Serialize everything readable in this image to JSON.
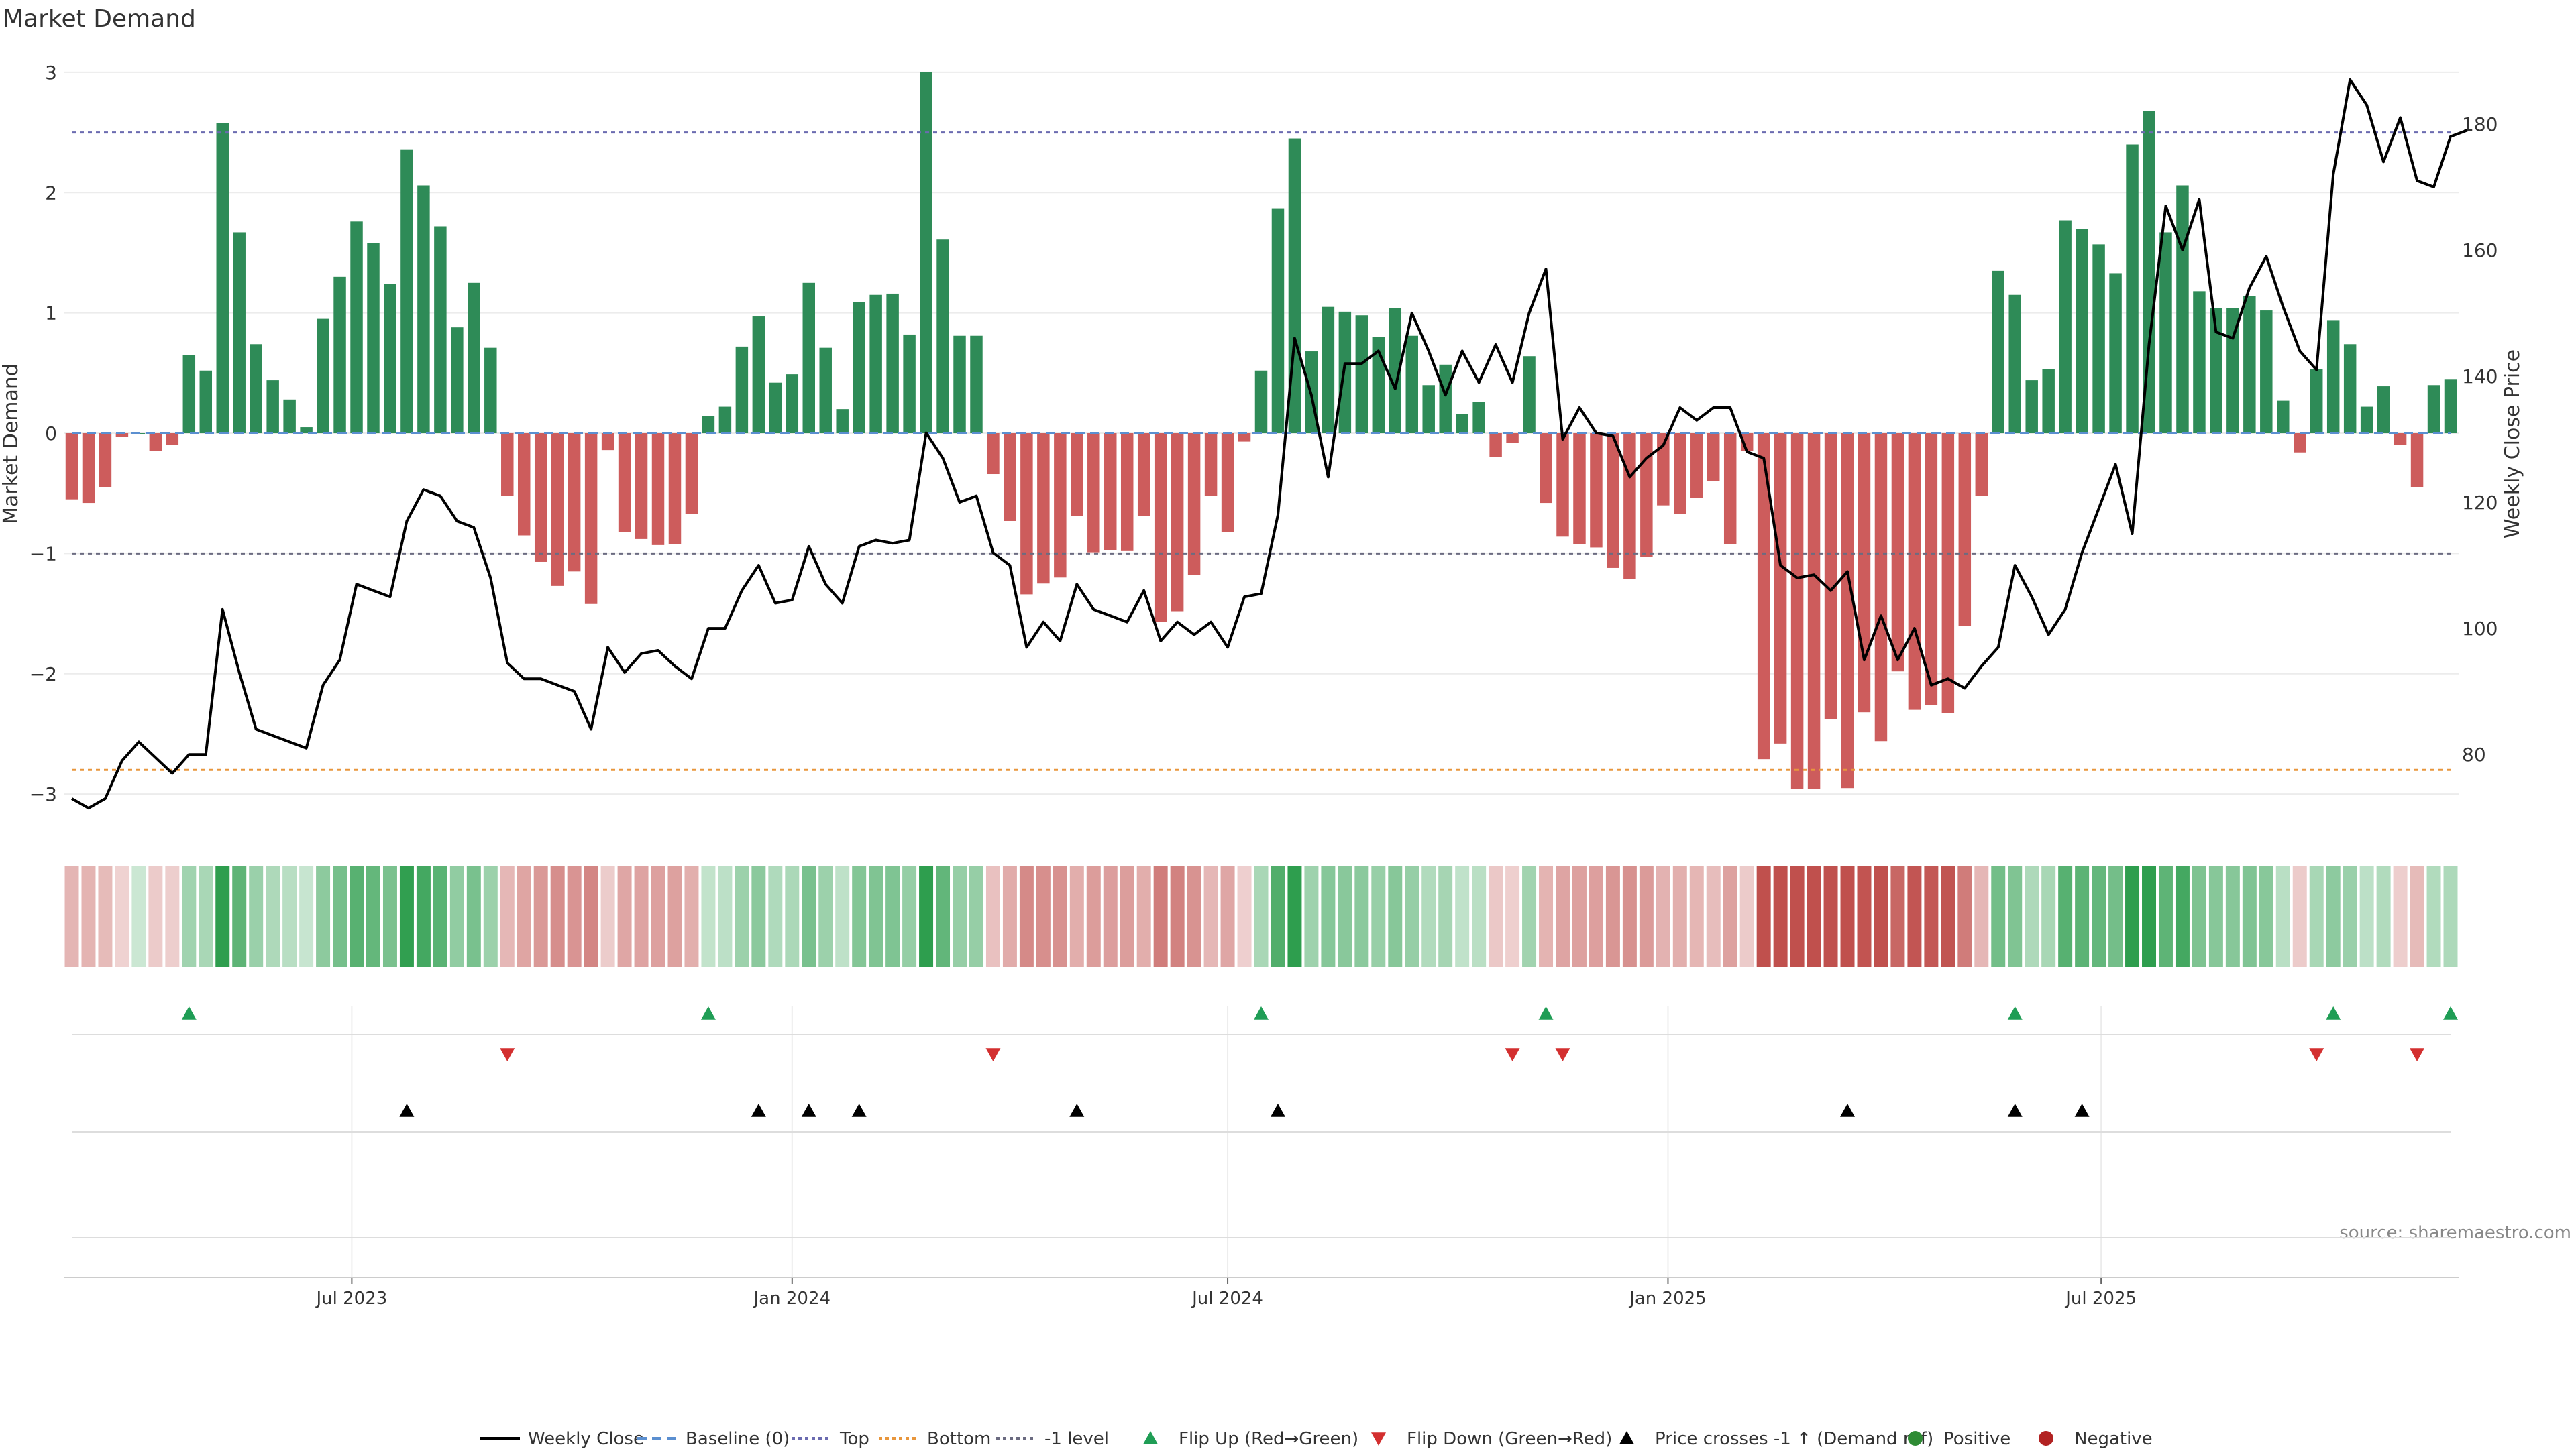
{
  "title": "Market Demand",
  "source": "source: sharemaestro.com",
  "colors": {
    "positive": "#2e8b57",
    "negative": "#cd5c5c",
    "price": "#000000",
    "top": "#6b6bb0",
    "bottom": "#e8963c",
    "minus_one": "#6b6b80",
    "flip_up": "#1f9d55",
    "flip_down": "#d32f2f"
  },
  "chart_data": {
    "type": "bar",
    "title": "Market Demand",
    "ylabel": "Market Demand",
    "y2label": "Weekly Close Price",
    "ylim": [
      -3.3,
      3.2
    ],
    "y2lim": [
      68,
      192
    ],
    "yticks": [
      3,
      2,
      1,
      0,
      -1,
      -2,
      -3
    ],
    "ytick_labels": [
      "3",
      "2",
      "1",
      "0",
      "−1",
      "−2",
      "−3"
    ],
    "y2ticks": [
      80,
      100,
      120,
      140,
      160,
      180
    ],
    "levels": {
      "top": 2.5,
      "bottom": -2.8,
      "minus_one": -1,
      "baseline": 0
    },
    "start_date": "2023-03-06",
    "date_ticks": [
      {
        "label": "Jul 2023",
        "date": "2023-07-01"
      },
      {
        "label": "Jan 2024",
        "date": "2024-01-01"
      },
      {
        "label": "Jul 2024",
        "date": "2024-07-01"
      },
      {
        "label": "Jan 2025",
        "date": "2025-01-01"
      },
      {
        "label": "Jul 2025",
        "date": "2025-07-01"
      }
    ],
    "demand": [
      -0.55,
      -0.58,
      -0.45,
      -0.03,
      0,
      -0.15,
      -0.1,
      0.65,
      0.52,
      2.58,
      1.67,
      0.74,
      0.44,
      0.28,
      0.05,
      0.95,
      1.3,
      1.76,
      1.58,
      1.24,
      2.36,
      2.06,
      1.72,
      0.88,
      1.25,
      0.71,
      -0.52,
      -0.85,
      -1.07,
      -1.27,
      -1.15,
      -1.42,
      -0.14,
      -0.82,
      -0.88,
      -0.93,
      -0.92,
      -0.67,
      0.14,
      0.22,
      0.72,
      0.97,
      0.42,
      0.49,
      1.25,
      0.71,
      0.2,
      1.09,
      1.15,
      1.16,
      0.82,
      3.0,
      1.61,
      0.81,
      0.81,
      -0.34,
      -0.73,
      -1.34,
      -1.25,
      -1.2,
      -0.69,
      -0.99,
      -0.97,
      -0.98,
      -0.69,
      -1.57,
      -1.48,
      -1.18,
      -0.52,
      -0.82,
      -0.07,
      0.52,
      1.87,
      2.45,
      0.68,
      1.05,
      1.01,
      0.98,
      0.8,
      1.04,
      0.81,
      0.4,
      0.57,
      0.16,
      0.26,
      -0.2,
      -0.08,
      0.64,
      -0.58,
      -0.86,
      -0.92,
      -0.95,
      -1.12,
      -1.21,
      -1.03,
      -0.6,
      -0.67,
      -0.54,
      -0.4,
      -0.92,
      -0.15,
      -2.71,
      -2.58,
      -2.96,
      -2.96,
      -2.38,
      -2.95,
      -2.32,
      -2.56,
      -1.98,
      -2.3,
      -2.26,
      -2.33,
      -1.6,
      -0.52,
      1.35,
      1.15,
      0.44,
      0.53,
      1.77,
      1.7,
      1.57,
      1.33,
      2.4,
      2.68,
      1.67,
      2.06,
      1.18,
      1.04,
      1.04,
      1.14,
      1.02,
      0.27,
      -0.16,
      0.53,
      0.94,
      0.74,
      0.22,
      0.39,
      -0.1,
      -0.45,
      0.4,
      0.45
    ],
    "price": [
      73,
      71.5,
      73,
      79,
      82,
      79.5,
      77,
      80,
      80,
      103,
      93,
      84,
      83,
      82,
      81,
      91,
      95,
      107,
      106,
      105,
      117,
      122,
      121,
      117,
      116,
      108,
      94.5,
      92,
      92,
      91,
      90,
      84,
      97,
      93,
      96,
      96.5,
      94,
      92,
      100,
      100,
      106,
      110,
      104,
      104.5,
      113,
      107,
      104,
      113,
      114,
      113.5,
      114,
      131,
      127,
      120,
      121,
      112,
      110,
      97,
      101,
      98,
      107,
      103,
      102,
      101,
      106,
      98,
      101,
      99,
      101,
      97,
      105,
      105.5,
      118,
      146,
      137,
      124,
      142,
      142,
      144,
      138,
      150,
      144,
      137,
      144,
      139,
      145,
      139,
      150,
      157,
      130,
      135,
      131,
      130.5,
      124,
      127,
      129,
      135,
      133,
      135,
      135,
      128,
      127,
      110,
      108,
      108.5,
      106,
      109,
      95,
      102,
      95,
      100,
      91,
      92,
      90.5,
      94,
      97,
      110,
      105,
      99,
      103,
      112,
      119,
      126,
      115,
      145,
      167,
      160,
      168,
      147,
      146,
      154,
      159,
      151,
      144,
      141,
      172,
      187,
      183,
      174,
      181,
      171,
      170,
      178,
      179
    ],
    "flip_up": [
      7,
      38,
      71,
      88,
      116,
      135,
      142
    ],
    "flip_down": [
      26,
      55,
      86,
      89,
      134,
      140
    ],
    "price_cross_up": [
      20,
      41,
      44,
      47,
      60,
      72,
      106,
      116,
      120
    ],
    "legend": [
      {
        "label": "Weekly Close",
        "marker": "line"
      },
      {
        "label": "Baseline (0)",
        "marker": "dashed-blue"
      },
      {
        "label": "Top",
        "marker": "dotted-purple"
      },
      {
        "label": "Bottom",
        "marker": "dotted-orange"
      },
      {
        "label": "-1 level",
        "marker": "dotted-gray"
      },
      {
        "label": "Flip Up (Red→Green)",
        "marker": "triangle-up-green"
      },
      {
        "label": "Flip Down (Green→Red)",
        "marker": "triangle-down-red"
      },
      {
        "label": "Price crosses -1 ↑ (Demand ref)",
        "marker": "triangle-up-black"
      },
      {
        "label": "Positive",
        "marker": "dot-green"
      },
      {
        "label": "Negative",
        "marker": "dot-red"
      }
    ]
  }
}
